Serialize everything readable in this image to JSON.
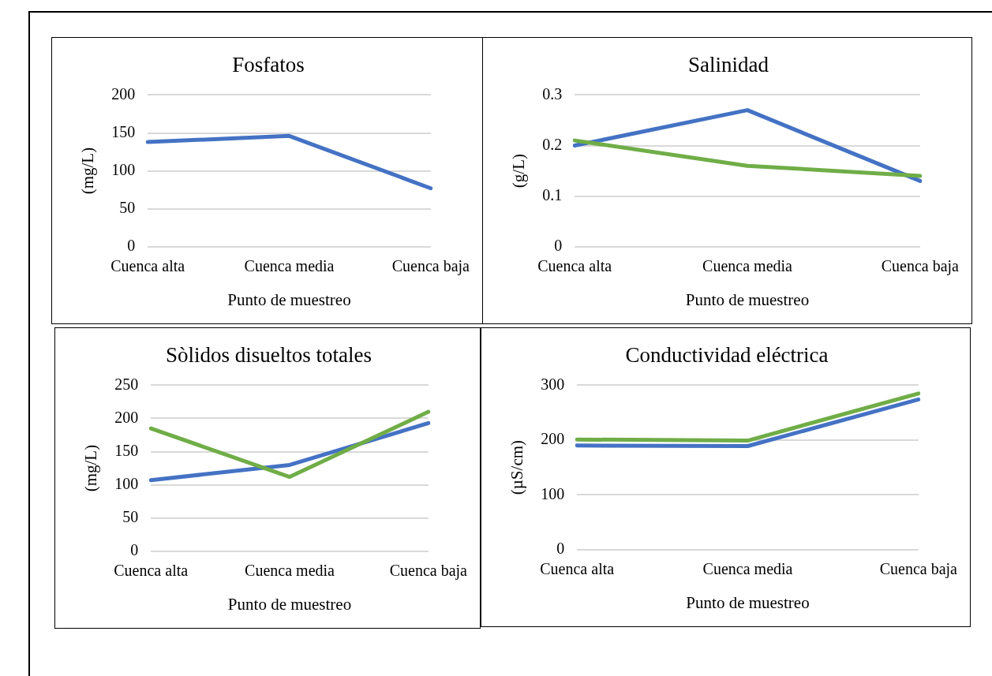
{
  "chart_data": [
    {
      "type": "line",
      "title": "Fosfatos",
      "xlabel": "Punto de muestreo",
      "ylabel": "(mg/L)",
      "categories": [
        "Cuenca alta",
        "Cuenca media",
        "Cuenca baja"
      ],
      "series": [
        {
          "color": "#4472c4",
          "values": [
            138,
            146,
            77
          ]
        }
      ],
      "ylim": [
        0,
        200
      ],
      "yticks": [
        0,
        50,
        100,
        150,
        200
      ],
      "grid": "y",
      "legend": false,
      "marker": "none"
    },
    {
      "type": "line",
      "title": "Salinidad",
      "xlabel": "Punto de muestreo",
      "ylabel": "(g/L)",
      "categories": [
        "Cuenca alta",
        "Cuenca media",
        "Cuenca baja"
      ],
      "series": [
        {
          "color": "#70ad47",
          "values": [
            0.21,
            0.16,
            0.14
          ]
        },
        {
          "color": "#4472c4",
          "values": [
            0.2,
            0.27,
            0.13
          ]
        }
      ],
      "ylim": [
        0,
        0.3
      ],
      "yticks": [
        0,
        0.1,
        0.2,
        0.3
      ],
      "grid": "y",
      "legend": false,
      "marker": "none"
    },
    {
      "type": "line",
      "title": "Sòlidos disueltos totales",
      "xlabel": "Punto de muestreo",
      "ylabel": "(mg/L)",
      "categories": [
        "Cuenca alta",
        "Cuenca media",
        "Cuenca baja"
      ],
      "series": [
        {
          "color": "#70ad47",
          "values": [
            185,
            112,
            210
          ]
        },
        {
          "color": "#4472c4",
          "values": [
            107,
            130,
            193
          ]
        }
      ],
      "ylim": [
        0,
        250
      ],
      "yticks": [
        0,
        50,
        100,
        150,
        200,
        250
      ],
      "grid": "y",
      "legend": false,
      "marker": "none"
    },
    {
      "type": "line",
      "title": "Conductividad eléctrica",
      "xlabel": "Punto de muestreo",
      "ylabel": "(µS/cm)",
      "categories": [
        "Cuenca alta",
        "Cuenca media",
        "Cuenca baja"
      ],
      "series": [
        {
          "color": "#70ad47",
          "values": [
            201,
            199,
            285
          ]
        },
        {
          "color": "#4472c4",
          "values": [
            190,
            189,
            274
          ]
        }
      ],
      "ylim": [
        0,
        300
      ],
      "yticks": [
        0,
        100,
        200,
        300
      ],
      "grid": "y",
      "legend": false,
      "marker": "none"
    }
  ]
}
